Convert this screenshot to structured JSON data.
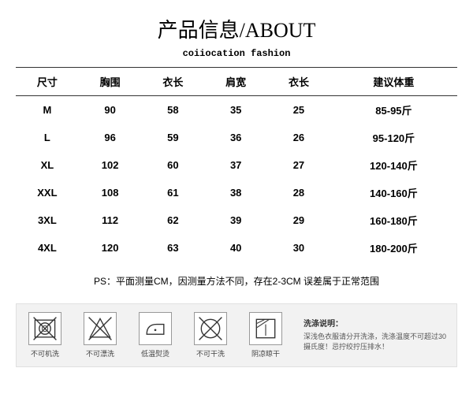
{
  "title": "产品信息/ABOUT",
  "subtitle": "coiiocation fashion",
  "table": {
    "columns": [
      "尺寸",
      "胸围",
      "衣长",
      "肩宽",
      "衣长",
      "建议体重"
    ],
    "rows": [
      [
        "M",
        "90",
        "58",
        "35",
        "25",
        "85-95斤"
      ],
      [
        "L",
        "96",
        "59",
        "36",
        "26",
        "95-120斤"
      ],
      [
        "XL",
        "102",
        "60",
        "37",
        "27",
        "120-140斤"
      ],
      [
        "XXL",
        "108",
        "61",
        "38",
        "28",
        "140-160斤"
      ],
      [
        "3XL",
        "112",
        "62",
        "39",
        "29",
        "160-180斤"
      ],
      [
        "4XL",
        "120",
        "63",
        "40",
        "30",
        "180-200斤"
      ]
    ]
  },
  "note": "PS：平面测量CM，因测量方法不同，存在2-3CM 误差属于正常范围",
  "care": {
    "items": [
      {
        "name": "no-machine-wash-icon",
        "label": "不可机洗"
      },
      {
        "name": "no-bleach-icon",
        "label": "不可漂洗"
      },
      {
        "name": "low-iron-icon",
        "label": "低温熨烫"
      },
      {
        "name": "no-dryclean-icon",
        "label": "不可干洗"
      },
      {
        "name": "shade-dry-icon",
        "label": "阴凉晾干"
      }
    ],
    "desc_heading": "洗涤说明：",
    "desc_body": "深浅色衣服请分开洗涤，洗涤温度不可超过30摄氏度！忌拧绞拧压排水！"
  },
  "colors": {
    "text": "#000000",
    "bg": "#ffffff",
    "strip_bg": "#f2f2f2",
    "icon_border": "#999999"
  }
}
